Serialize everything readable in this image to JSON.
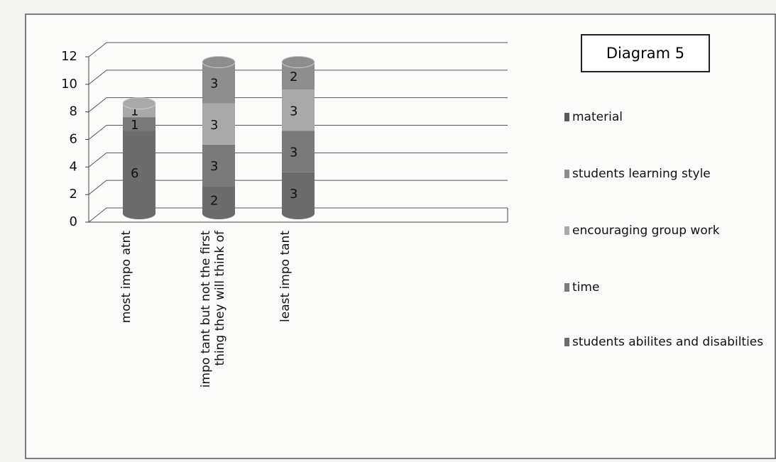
{
  "chart_data": {
    "type": "bar3d_stacked",
    "title": "Diagram 5",
    "categories": [
      "most impo atnt",
      "impo tant but not the first thing they will think of",
      "least impo tant"
    ],
    "series": [
      {
        "name": "material",
        "color": "#5a5a5a",
        "values": [
          null,
          null,
          null
        ]
      },
      {
        "name": "students learning style",
        "color": "#8e8e8e",
        "values": [
          null,
          3,
          2
        ]
      },
      {
        "name": "encouraging group work",
        "color": "#a9a9a9",
        "values": [
          1,
          3,
          3
        ]
      },
      {
        "name": "time",
        "color": "#7a7a7a",
        "values": [
          1,
          3,
          3
        ]
      },
      {
        "name": "students abilites and disabilties",
        "color": "#6c6c6c",
        "values": [
          6,
          2,
          3
        ]
      }
    ],
    "ylim": [
      0,
      12
    ],
    "yticks": [
      0,
      2,
      4,
      6,
      8,
      10,
      12
    ],
    "grid": true
  }
}
